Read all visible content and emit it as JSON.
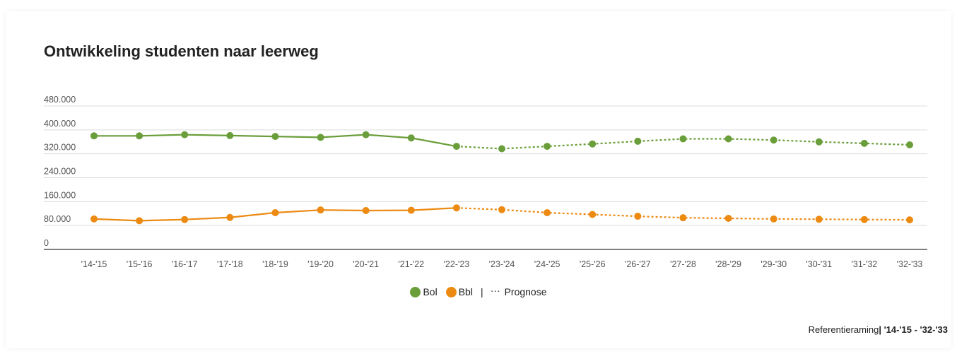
{
  "chart_data": {
    "type": "line",
    "title": "Ontwikkeling studenten naar leerweg",
    "categories": [
      "'14-'15",
      "'15-'16",
      "'16-'17",
      "'17-'18",
      "'18-'19",
      "'19-'20",
      "'20-'21",
      "'21-'22",
      "'22-'23",
      "'23-'24",
      "'24-'25",
      "'25-'26",
      "'26-'27",
      "'27-'28",
      "'28-'29",
      "'29-'30",
      "'30-'31",
      "'31-'32",
      "'32-'33"
    ],
    "forecast_start_index": 8,
    "ylim": [
      0,
      480000
    ],
    "yticks": [
      0,
      80000,
      160000,
      240000,
      320000,
      400000,
      480000
    ],
    "ytick_labels": [
      "0",
      "80.000",
      "160.000",
      "240.000",
      "320.000",
      "400.000",
      "480.000"
    ],
    "grid": true,
    "legend_position": "bottom-center",
    "series": [
      {
        "name": "Bol",
        "color": "#6a9e3a",
        "values": [
          380000,
          380000,
          384000,
          381000,
          378000,
          375000,
          384000,
          373000,
          345000,
          337000,
          345000,
          353000,
          362000,
          370000,
          370000,
          366000,
          360000,
          355000,
          350000
        ]
      },
      {
        "name": "Bbl",
        "color": "#ec8a12",
        "values": [
          102000,
          96000,
          100000,
          107000,
          123000,
          132000,
          130000,
          131000,
          139000,
          133000,
          123000,
          117000,
          111000,
          106000,
          104000,
          102000,
          101000,
          100000,
          99000
        ]
      }
    ]
  },
  "legend": {
    "bol_label": "Bol",
    "bbl_label": "Bbl",
    "separator": "|",
    "prognose_label": "Prognose"
  },
  "footer": {
    "label": "Referentieraming",
    "range": "| '14-'15 - '32-'33"
  }
}
